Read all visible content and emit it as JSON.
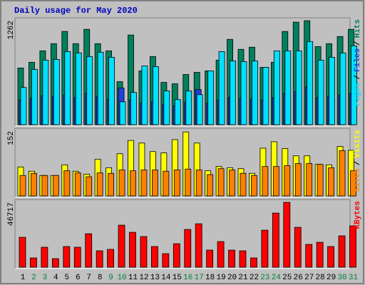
{
  "chart_data": [
    {
      "type": "bar",
      "title": "Daily usage for May 2020",
      "ylim": [
        0,
        1262
      ],
      "yticks": [
        1262
      ],
      "legend_separator": "/",
      "series": [
        {
          "name": "Hits",
          "color": "#00805c",
          "values": [
            688,
            757,
            896,
            983,
            1131,
            983,
            1157,
            983,
            896,
            522,
            1088,
            653,
            827,
            513,
            496,
            609,
            635,
            653,
            783,
            1035,
            914,
            940,
            696,
            757,
            1131,
            1244,
            1262,
            948,
            983,
            1070,
            1157
          ]
        },
        {
          "name": "Files",
          "color": "#2040e0",
          "values": [
            300,
            320,
            350,
            340,
            360,
            330,
            380,
            340,
            310,
            444,
            300,
            260,
            280,
            250,
            230,
            270,
            426,
            260,
            300,
            330,
            320,
            310,
            300,
            330,
            380,
            400,
            460,
            330,
            340,
            360,
            380
          ]
        },
        {
          "name": "Pages",
          "color": "#00e0ff",
          "values": [
            452,
            670,
            783,
            792,
            887,
            870,
            827,
            879,
            818,
            278,
            392,
            713,
            705,
            409,
            305,
            409,
            365,
            653,
            887,
            774,
            766,
            774,
            696,
            896,
            896,
            896,
            1009,
            783,
            818,
            870,
            957
          ]
        }
      ]
    },
    {
      "type": "bar",
      "ylim": [
        0,
        152
      ],
      "yticks": [
        152
      ],
      "legend_separator": "/",
      "series": [
        {
          "name": "Visits",
          "color": "#ffff00",
          "values": [
            68,
            58,
            48,
            48,
            73,
            58,
            51,
            86,
            66,
            99,
            130,
            124,
            104,
            101,
            132,
            150,
            124,
            59,
            69,
            66,
            64,
            53,
            112,
            127,
            111,
            94,
            94,
            74,
            73,
            116,
            107
          ]
        },
        {
          "name": "Sites",
          "color": "#ff8000",
          "values": [
            48,
            53,
            48,
            48,
            59,
            54,
            45,
            54,
            53,
            61,
            59,
            61,
            61,
            58,
            61,
            63,
            61,
            50,
            64,
            61,
            53,
            48,
            69,
            69,
            71,
            76,
            76,
            74,
            66,
            106,
            59
          ]
        }
      ]
    },
    {
      "type": "bar",
      "ylim": [
        0,
        46717
      ],
      "yticks": [
        46717
      ],
      "categories": [
        "1",
        "2",
        "3",
        "4",
        "5",
        "6",
        "7",
        "8",
        "9",
        "10",
        "11",
        "12",
        "13",
        "14",
        "15",
        "16",
        "17",
        "18",
        "19",
        "20",
        "21",
        "22",
        "23",
        "24",
        "25",
        "26",
        "27",
        "28",
        "29",
        "30",
        "31"
      ],
      "category_colors": [
        "#000000",
        "#008040",
        "#008040",
        "#000000",
        "#000000",
        "#000000",
        "#000000",
        "#000000",
        "#008040",
        "#008040",
        "#000000",
        "#000000",
        "#000000",
        "#000000",
        "#000000",
        "#008040",
        "#008040",
        "#000000",
        "#000000",
        "#000000",
        "#000000",
        "#000000",
        "#008040",
        "#008040",
        "#000000",
        "#000000",
        "#000000",
        "#000000",
        "#000000",
        "#008040",
        "#008040"
      ],
      "series": [
        {
          "name": "KBytes",
          "color": "#ff0000",
          "values": [
            21546,
            6669,
            14364,
            6156,
            14877,
            14364,
            24111,
            11799,
            12825,
            30267,
            25137,
            22059,
            14877,
            9747,
            16929,
            27189,
            31293,
            12312,
            18468,
            12312,
            11799,
            6669,
            26676,
            38988,
            46717,
            28728,
            16416,
            17955,
            14877,
            22572,
            29754
          ]
        }
      ]
    }
  ]
}
